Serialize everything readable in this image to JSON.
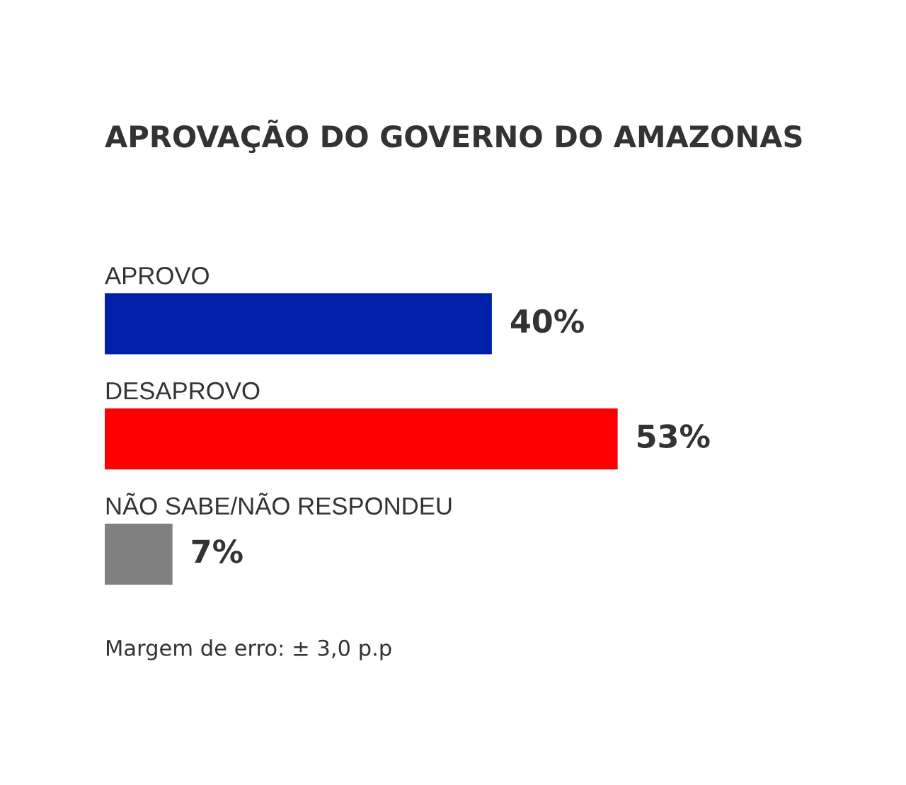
{
  "chart_data": {
    "type": "bar",
    "orientation": "horizontal",
    "title": "APROVAÇÃO DO GOVERNO DO AMAZONAS",
    "categories": [
      "APROVO",
      "DESAPROVO",
      "NÃO SABE/NÃO RESPONDEU"
    ],
    "values": [
      40,
      53,
      7
    ],
    "colors": [
      "#0020a8",
      "#ff0000",
      "#808080"
    ],
    "value_labels": [
      "40%",
      "53%",
      "7%"
    ],
    "annotations": [
      "Margem de erro: ± 3,0 p.p"
    ]
  }
}
